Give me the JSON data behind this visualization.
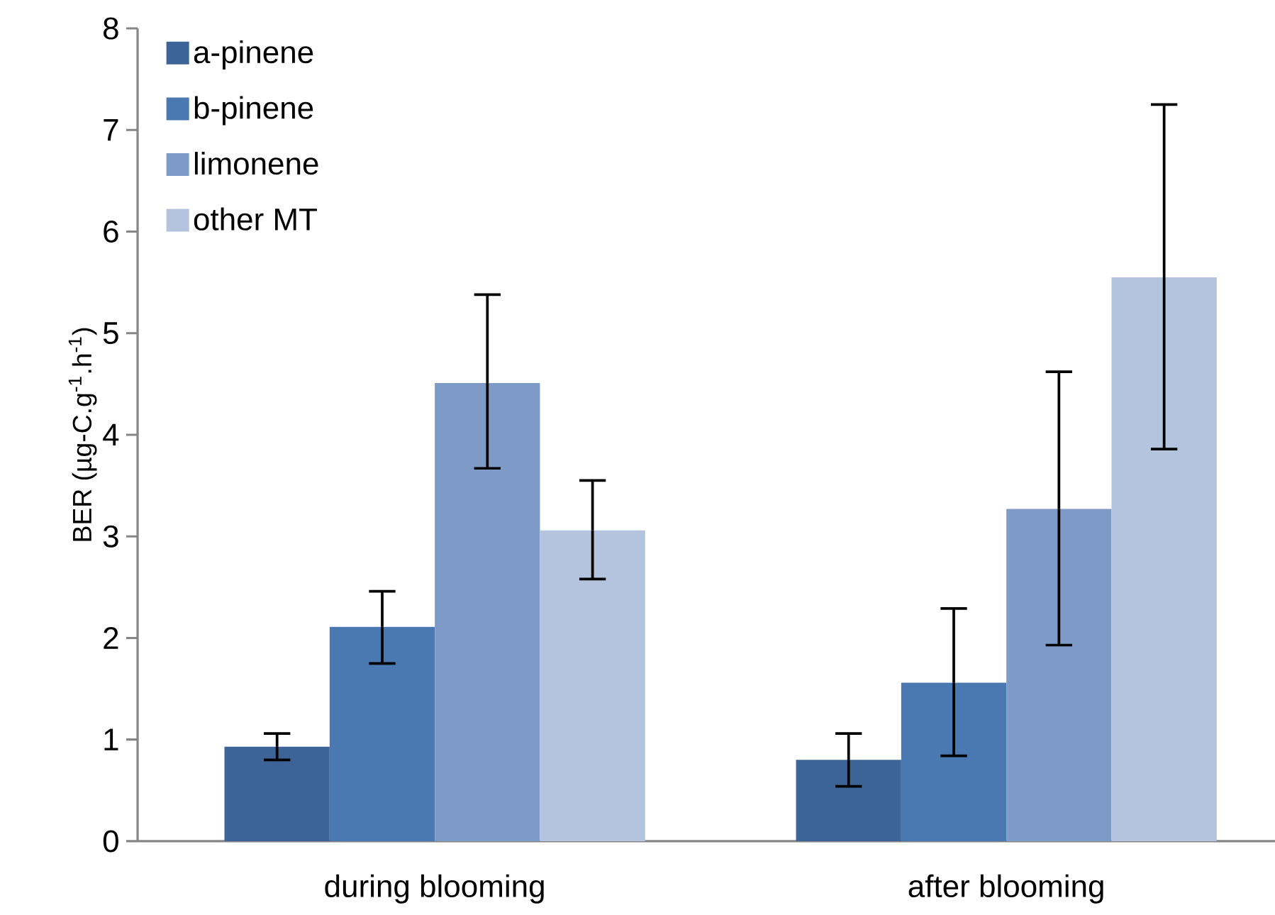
{
  "chart_data": {
    "type": "bar",
    "ylabel": "BER (µg-C.g$^{-1}$.h$^{-1}$)",
    "categories": [
      "during blooming",
      "after blooming"
    ],
    "ylim": [
      0,
      8
    ],
    "yticks": [
      0,
      1,
      2,
      3,
      4,
      5,
      6,
      7,
      8
    ],
    "legend": "top left",
    "series": [
      {
        "name": "a-pinene",
        "color": "#3c6496",
        "values": [
          0.93,
          0.8
        ],
        "errors": [
          [
            0.8,
            1.06
          ],
          [
            0.54,
            1.06
          ]
        ]
      },
      {
        "name": "b-pinene",
        "color": "#4a78b0",
        "values": [
          2.11,
          1.56
        ],
        "errors": [
          [
            1.75,
            2.46
          ],
          [
            0.84,
            2.29
          ]
        ]
      },
      {
        "name": "limonene",
        "color": "#7e9bc8",
        "values": [
          4.51,
          3.27
        ],
        "errors": [
          [
            3.67,
            5.38
          ],
          [
            1.93,
            4.62
          ]
        ]
      },
      {
        "name": "other MT",
        "color": "#b4c3de",
        "values": [
          3.06,
          5.55
        ],
        "errors": [
          [
            2.58,
            3.55
          ],
          [
            3.86,
            7.25
          ]
        ]
      }
    ]
  }
}
